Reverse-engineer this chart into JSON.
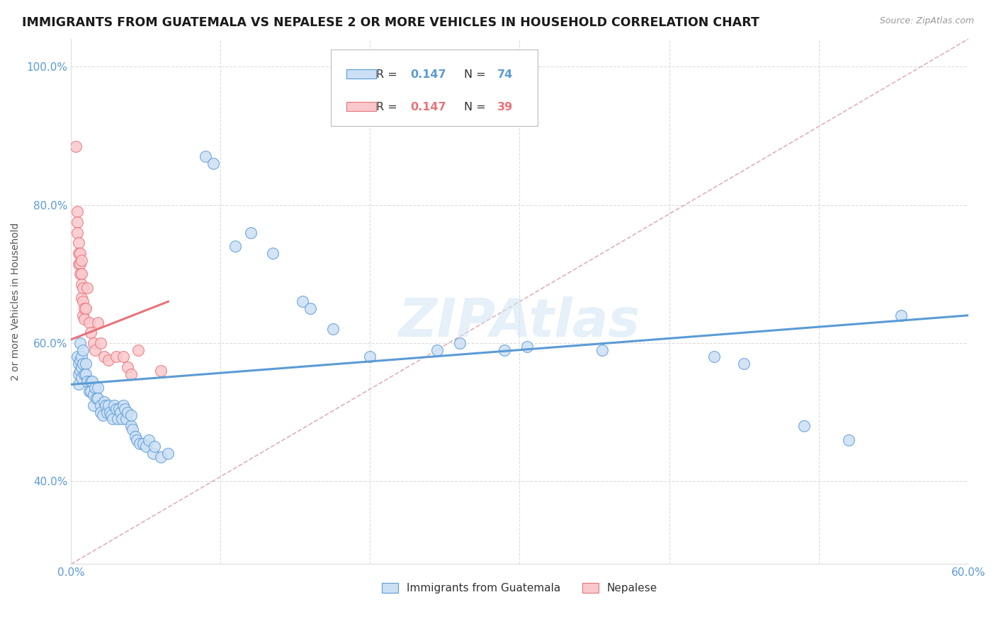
{
  "title": "IMMIGRANTS FROM GUATEMALA VS NEPALESE 2 OR MORE VEHICLES IN HOUSEHOLD CORRELATION CHART",
  "source": "Source: ZipAtlas.com",
  "ylabel": "2 or more Vehicles in Household",
  "xlim": [
    0.0,
    0.6
  ],
  "ylim": [
    0.28,
    1.04
  ],
  "xticks": [
    0.0,
    0.1,
    0.2,
    0.3,
    0.4,
    0.5,
    0.6
  ],
  "xticklabels": [
    "0.0%",
    "",
    "",
    "",
    "",
    "",
    "60.0%"
  ],
  "yticks": [
    0.4,
    0.6,
    0.8,
    1.0
  ],
  "yticklabels": [
    "40.0%",
    "60.0%",
    "80.0%",
    "100.0%"
  ],
  "watermark": "ZIPAtlas",
  "blue_scatter": [
    [
      0.004,
      0.58
    ],
    [
      0.005,
      0.57
    ],
    [
      0.005,
      0.555
    ],
    [
      0.005,
      0.54
    ],
    [
      0.006,
      0.6
    ],
    [
      0.006,
      0.575
    ],
    [
      0.006,
      0.56
    ],
    [
      0.007,
      0.58
    ],
    [
      0.007,
      0.565
    ],
    [
      0.007,
      0.55
    ],
    [
      0.008,
      0.59
    ],
    [
      0.008,
      0.57
    ],
    [
      0.009,
      0.555
    ],
    [
      0.01,
      0.57
    ],
    [
      0.01,
      0.555
    ],
    [
      0.011,
      0.545
    ],
    [
      0.012,
      0.53
    ],
    [
      0.013,
      0.545
    ],
    [
      0.013,
      0.53
    ],
    [
      0.014,
      0.545
    ],
    [
      0.015,
      0.525
    ],
    [
      0.015,
      0.51
    ],
    [
      0.016,
      0.535
    ],
    [
      0.017,
      0.52
    ],
    [
      0.018,
      0.535
    ],
    [
      0.018,
      0.52
    ],
    [
      0.02,
      0.51
    ],
    [
      0.02,
      0.5
    ],
    [
      0.021,
      0.495
    ],
    [
      0.022,
      0.515
    ],
    [
      0.023,
      0.51
    ],
    [
      0.024,
      0.5
    ],
    [
      0.025,
      0.51
    ],
    [
      0.026,
      0.5
    ],
    [
      0.027,
      0.495
    ],
    [
      0.028,
      0.49
    ],
    [
      0.029,
      0.51
    ],
    [
      0.03,
      0.505
    ],
    [
      0.031,
      0.49
    ],
    [
      0.032,
      0.505
    ],
    [
      0.033,
      0.5
    ],
    [
      0.034,
      0.49
    ],
    [
      0.035,
      0.51
    ],
    [
      0.036,
      0.505
    ],
    [
      0.037,
      0.49
    ],
    [
      0.038,
      0.5
    ],
    [
      0.04,
      0.48
    ],
    [
      0.04,
      0.495
    ],
    [
      0.041,
      0.475
    ],
    [
      0.043,
      0.465
    ],
    [
      0.044,
      0.46
    ],
    [
      0.046,
      0.455
    ],
    [
      0.048,
      0.455
    ],
    [
      0.05,
      0.45
    ],
    [
      0.052,
      0.46
    ],
    [
      0.055,
      0.44
    ],
    [
      0.056,
      0.45
    ],
    [
      0.06,
      0.435
    ],
    [
      0.065,
      0.44
    ],
    [
      0.09,
      0.87
    ],
    [
      0.095,
      0.86
    ],
    [
      0.11,
      0.74
    ],
    [
      0.12,
      0.76
    ],
    [
      0.135,
      0.73
    ],
    [
      0.155,
      0.66
    ],
    [
      0.16,
      0.65
    ],
    [
      0.175,
      0.62
    ],
    [
      0.2,
      0.58
    ],
    [
      0.245,
      0.59
    ],
    [
      0.26,
      0.6
    ],
    [
      0.29,
      0.59
    ],
    [
      0.305,
      0.595
    ],
    [
      0.355,
      0.59
    ],
    [
      0.43,
      0.58
    ],
    [
      0.45,
      0.57
    ],
    [
      0.49,
      0.48
    ],
    [
      0.52,
      0.46
    ],
    [
      0.555,
      0.64
    ]
  ],
  "pink_scatter": [
    [
      0.003,
      0.885
    ],
    [
      0.004,
      0.79
    ],
    [
      0.004,
      0.775
    ],
    [
      0.004,
      0.76
    ],
    [
      0.005,
      0.745
    ],
    [
      0.005,
      0.73
    ],
    [
      0.005,
      0.715
    ],
    [
      0.006,
      0.73
    ],
    [
      0.006,
      0.715
    ],
    [
      0.006,
      0.7
    ],
    [
      0.007,
      0.72
    ],
    [
      0.007,
      0.7
    ],
    [
      0.007,
      0.685
    ],
    [
      0.007,
      0.665
    ],
    [
      0.008,
      0.68
    ],
    [
      0.008,
      0.66
    ],
    [
      0.008,
      0.64
    ],
    [
      0.009,
      0.65
    ],
    [
      0.009,
      0.635
    ],
    [
      0.01,
      0.65
    ],
    [
      0.011,
      0.68
    ],
    [
      0.012,
      0.63
    ],
    [
      0.013,
      0.615
    ],
    [
      0.015,
      0.6
    ],
    [
      0.016,
      0.59
    ],
    [
      0.018,
      0.63
    ],
    [
      0.02,
      0.6
    ],
    [
      0.022,
      0.58
    ],
    [
      0.025,
      0.575
    ],
    [
      0.03,
      0.58
    ],
    [
      0.035,
      0.58
    ],
    [
      0.038,
      0.565
    ],
    [
      0.04,
      0.555
    ],
    [
      0.045,
      0.59
    ],
    [
      0.06,
      0.56
    ]
  ],
  "blue_line_x": [
    0.0,
    0.6
  ],
  "blue_line_y": [
    0.54,
    0.64
  ],
  "pink_line_x": [
    0.0,
    0.065
  ],
  "pink_line_y": [
    0.605,
    0.66
  ],
  "diag_line_x": [
    0.0,
    0.6
  ],
  "diag_line_y": [
    0.28,
    1.04
  ],
  "blue_color": "#5b9bd5",
  "pink_color": "#e8737a",
  "blue_fill": "#cce0f5",
  "pink_fill": "#f9c8cc",
  "diag_color": "#e0b0b8",
  "grid_color": "#dddddd",
  "title_color": "#1a1a1a",
  "axis_color": "#5b9bd5",
  "background_color": "#ffffff",
  "title_fontsize": 12.5,
  "axis_label_fontsize": 10,
  "tick_fontsize": 11,
  "legend_r_color": "#5b9bd5",
  "legend_r2_color": "#e8737a"
}
